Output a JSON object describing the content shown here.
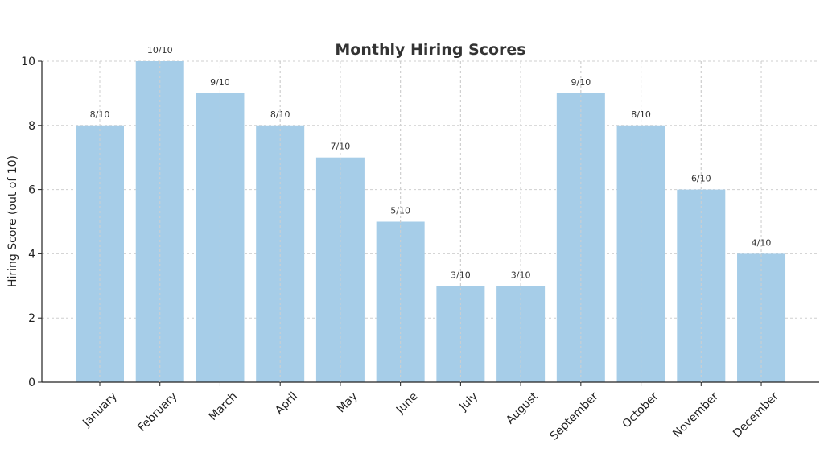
{
  "chart_data": {
    "type": "bar",
    "title": "Monthly Hiring Scores",
    "xlabel": "",
    "ylabel": "Hiring Score (out of 10)",
    "ylim": [
      0,
      10
    ],
    "yticks": [
      "0",
      "2",
      "4",
      "6",
      "8",
      "10"
    ],
    "grid": true,
    "categories": [
      "January",
      "February",
      "March",
      "April",
      "May",
      "June",
      "July",
      "August",
      "September",
      "October",
      "November",
      "December"
    ],
    "values": [
      8,
      10,
      9,
      8,
      7,
      5,
      3,
      3,
      9,
      8,
      6,
      4
    ],
    "data_labels": [
      "8/10",
      "10/10",
      "9/10",
      "8/10",
      "7/10",
      "5/10",
      "3/10",
      "3/10",
      "9/10",
      "8/10",
      "6/10",
      "4/10"
    ],
    "bar_color": "#a6cde8"
  }
}
